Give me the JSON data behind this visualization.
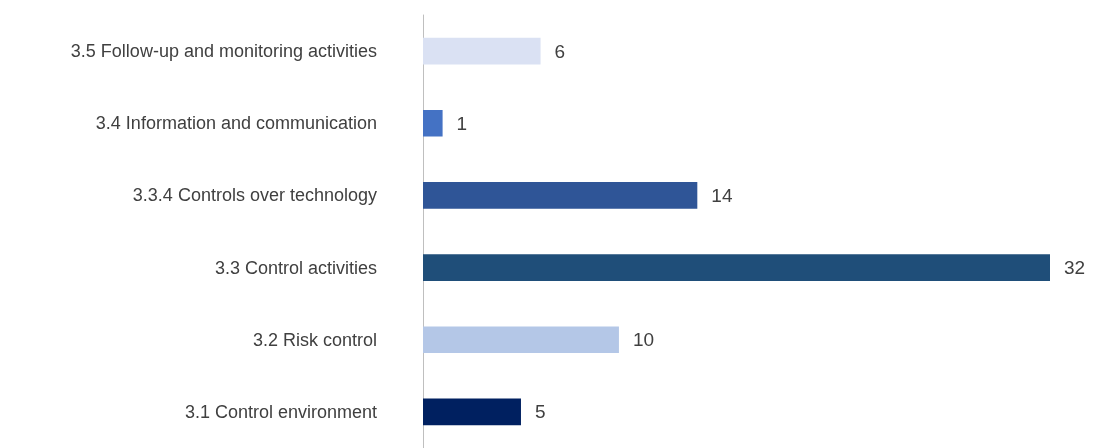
{
  "chart_data": {
    "type": "bar",
    "orientation": "horizontal",
    "categories": [
      "3.5 Follow-up and monitoring activities",
      "3.4 Information and communication",
      "3.3.4 Controls over technology",
      "3.3 Control activities",
      "3.2 Risk control",
      "3.1 Control environment"
    ],
    "values": [
      6,
      1,
      14,
      32,
      10,
      5
    ],
    "colors": [
      "#dae1f3",
      "#4472c4",
      "#2f5597",
      "#1f4e79",
      "#b4c7e7",
      "#002060"
    ],
    "data_labels": true
  }
}
